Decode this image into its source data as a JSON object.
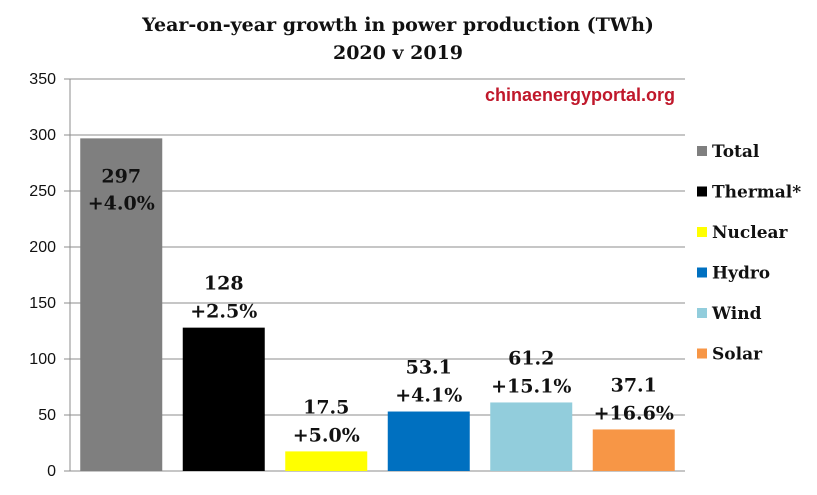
{
  "chart_data": {
    "type": "bar",
    "title": "Year-on-year growth in power production (TWh)",
    "subtitle": "2020 v 2019",
    "watermark": "chinaenergyportal.org",
    "watermark_color": "#c0182b",
    "categories": [
      "Total",
      "Thermal*",
      "Nuclear",
      "Hydro",
      "Wind",
      "Solar"
    ],
    "values": [
      297,
      128,
      17.5,
      53.1,
      61.2,
      37.1
    ],
    "value_labels": [
      "297",
      "128",
      "17.5",
      "53.1",
      "61.2",
      "37.1"
    ],
    "pct_labels": [
      "+4.0%",
      "+2.5%",
      "+5.0%",
      "+4.1%",
      "+15.1%",
      "+16.6%"
    ],
    "colors": [
      "#7f7f7f",
      "#000000",
      "#ffff00",
      "#0070c0",
      "#92cddc",
      "#f79646"
    ],
    "ylim": [
      0,
      350
    ],
    "yticks": [
      0,
      50,
      100,
      150,
      200,
      250,
      300,
      350
    ],
    "grid": true,
    "legend_position": "right",
    "xlabel": "",
    "ylabel": ""
  }
}
